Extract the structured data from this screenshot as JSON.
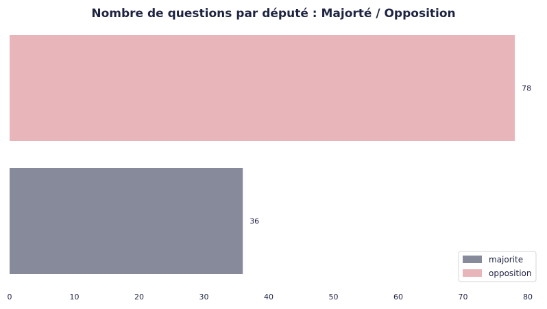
{
  "chart_data": {
    "type": "bar",
    "orientation": "horizontal",
    "title": "Nombre de questions par député : Majorté / Opposition",
    "xlabel": "",
    "ylabel": "",
    "categories": [
      "opposition",
      "majorite"
    ],
    "values": [
      78,
      36
    ],
    "colors": [
      "#e8b5ba",
      "#878a9b"
    ],
    "xlim": [
      0,
      80
    ],
    "x_ticks": [
      0,
      10,
      20,
      30,
      40,
      50,
      60,
      70,
      80
    ],
    "grid": false,
    "legend": {
      "placement": "bottom-right",
      "entries": [
        {
          "label": "majorite",
          "color": "#878a9b"
        },
        {
          "label": "opposition",
          "color": "#e8b5ba"
        }
      ]
    },
    "text_color": "#1e2340"
  }
}
